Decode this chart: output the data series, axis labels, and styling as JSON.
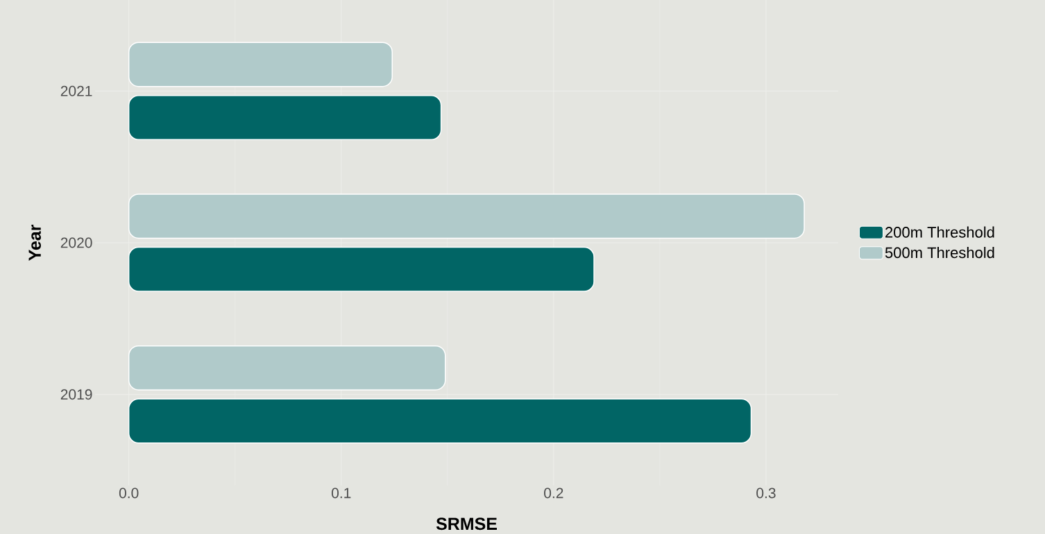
{
  "chart_data": {
    "type": "bar",
    "orientation": "horizontal",
    "xlabel": "SRMSE",
    "ylabel": "Year",
    "categories": [
      "2021",
      "2020",
      "2019"
    ],
    "series": [
      {
        "name": "200m Threshold",
        "color": "#016565",
        "values": [
          0.147,
          0.219,
          0.293
        ]
      },
      {
        "name": "500m Threshold",
        "color": "#b0caca",
        "values": [
          0.124,
          0.318,
          0.149
        ]
      }
    ],
    "xlim": [
      -0.0159,
      0.334
    ],
    "xticks": [
      {
        "value": 0,
        "label": "0.0"
      },
      {
        "value": 0.1,
        "label": "0.1"
      },
      {
        "value": 0.2,
        "label": "0.2"
      },
      {
        "value": 0.3,
        "label": "0.3"
      }
    ],
    "grid": true,
    "legend": "right"
  }
}
